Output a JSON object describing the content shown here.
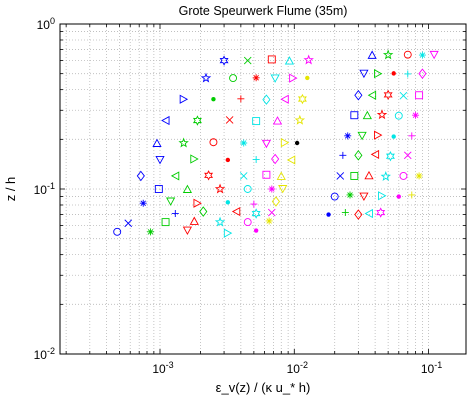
{
  "chart_data": {
    "type": "scatter",
    "title": "Grote Speurwerk Flume (35m)",
    "xlabel": "ε_v(z) / (κ u_* h)",
    "ylabel": "z / h",
    "xscale": "log",
    "yscale": "log",
    "xlim": [
      0.00018,
      0.19
    ],
    "ylim": [
      0.01,
      1
    ],
    "xticks": [
      {
        "value": 0.001,
        "base": "10",
        "exp": "-3"
      },
      {
        "value": 0.01,
        "base": "10",
        "exp": "-2"
      },
      {
        "value": 0.1,
        "base": "10",
        "exp": "-1"
      }
    ],
    "yticks": [
      {
        "value": 0.01,
        "base": "10",
        "exp": "-2"
      },
      {
        "value": 0.1,
        "base": "10",
        "exp": "-1"
      },
      {
        "value": 1,
        "base": "10",
        "exp": "0"
      }
    ],
    "grid": true,
    "legend": "none",
    "colors": [
      "#0000ff",
      "#00cc00",
      "#ff0000",
      "#00e5e5",
      "#ff00ff",
      "#e5e500",
      "#000000"
    ],
    "marker_order": [
      "circle",
      "x",
      "plus",
      "star",
      "square",
      "diamond",
      "tri-down",
      "tri-up",
      "tri-left",
      "tri-right",
      "pentagram",
      "hexagram",
      "point"
    ],
    "series": [
      {
        "x": [
          0.00048,
          0.00085,
          0.0016,
          0.0032,
          0.0052
        ],
        "y": [
          0.055,
          0.055,
          0.056,
          0.054,
          0.056
        ]
      },
      {
        "x": [
          0.00058,
          0.0011,
          0.0018,
          0.0028,
          0.0045,
          0.0065
        ],
        "y": [
          0.062,
          0.063,
          0.064,
          0.063,
          0.063,
          0.064
        ]
      },
      {
        "x": [
          0.0013,
          0.0021,
          0.0037,
          0.0052,
          0.0068
        ],
        "y": [
          0.071,
          0.073,
          0.073,
          0.071,
          0.072
        ]
      },
      {
        "x": [
          0.00075,
          0.0012,
          0.0019,
          0.0032,
          0.005,
          0.0073
        ],
        "y": [
          0.082,
          0.084,
          0.082,
          0.083,
          0.081,
          0.084
        ]
      },
      {
        "x": [
          0.00098,
          0.0016,
          0.0028,
          0.0045,
          0.0068,
          0.0082
        ],
        "y": [
          0.1,
          0.1,
          0.1,
          0.1,
          0.1,
          0.1
        ]
      },
      {
        "x": [
          0.00072,
          0.0013,
          0.0023,
          0.0042,
          0.0062,
          0.008
        ],
        "y": [
          0.12,
          0.12,
          0.121,
          0.12,
          0.122,
          0.12
        ]
      },
      {
        "x": [
          0.001,
          0.0018,
          0.0032,
          0.0052,
          0.0072,
          0.0095
        ],
        "y": [
          0.15,
          0.152,
          0.15,
          0.151,
          0.152,
          0.15
        ]
      },
      {
        "x": [
          0.00095,
          0.0015,
          0.0025,
          0.0042,
          0.0062,
          0.0085,
          0.0105
        ],
        "y": [
          0.19,
          0.19,
          0.192,
          0.19,
          0.188,
          0.191,
          0.19
        ]
      },
      {
        "x": [
          0.0011,
          0.0019,
          0.0033,
          0.0052,
          0.0075,
          0.011
        ],
        "y": [
          0.26,
          0.26,
          0.262,
          0.258,
          0.26,
          0.261
        ]
      },
      {
        "x": [
          0.0015,
          0.0025,
          0.004,
          0.0062,
          0.0085,
          0.0115
        ],
        "y": [
          0.35,
          0.35,
          0.352,
          0.348,
          0.35,
          0.351
        ]
      },
      {
        "x": [
          0.0022,
          0.0035,
          0.0052,
          0.0072,
          0.0098,
          0.0125
        ],
        "y": [
          0.47,
          0.47,
          0.472,
          0.468,
          0.47,
          0.471
        ]
      },
      {
        "x": [
          0.003,
          0.0045,
          0.0068,
          0.0092,
          0.0128
        ],
        "y": [
          0.6,
          0.6,
          0.61,
          0.6,
          0.605
        ]
      },
      {
        "x": [
          0.018,
          0.024,
          0.03,
          0.036,
          0.044
        ],
        "y": [
          0.07,
          0.072,
          0.07,
          0.071,
          0.072
        ]
      },
      {
        "x": [
          0.02,
          0.026,
          0.033,
          0.045,
          0.06,
          0.075
        ],
        "y": [
          0.09,
          0.092,
          0.09,
          0.091,
          0.09,
          0.092
        ]
      },
      {
        "x": [
          0.022,
          0.028,
          0.036,
          0.048,
          0.065,
          0.085
        ],
        "y": [
          0.12,
          0.12,
          0.121,
          0.119,
          0.12,
          0.12
        ]
      },
      {
        "x": [
          0.023,
          0.03,
          0.04,
          0.052,
          0.07
        ],
        "y": [
          0.16,
          0.16,
          0.162,
          0.158,
          0.16
        ]
      },
      {
        "x": [
          0.025,
          0.032,
          0.042,
          0.055,
          0.075
        ],
        "y": [
          0.21,
          0.21,
          0.212,
          0.208,
          0.21
        ]
      },
      {
        "x": [
          0.028,
          0.035,
          0.045,
          0.06,
          0.08
        ],
        "y": [
          0.28,
          0.28,
          0.282,
          0.278,
          0.28
        ]
      },
      {
        "x": [
          0.03,
          0.038,
          0.05,
          0.065,
          0.085
        ],
        "y": [
          0.37,
          0.37,
          0.372,
          0.368,
          0.37
        ]
      },
      {
        "x": [
          0.033,
          0.042,
          0.055,
          0.07,
          0.09
        ],
        "y": [
          0.5,
          0.5,
          0.502,
          0.498,
          0.5
        ]
      },
      {
        "x": [
          0.038,
          0.05,
          0.07,
          0.09,
          0.11
        ],
        "y": [
          0.65,
          0.65,
          0.652,
          0.648,
          0.65
        ]
      }
    ]
  }
}
